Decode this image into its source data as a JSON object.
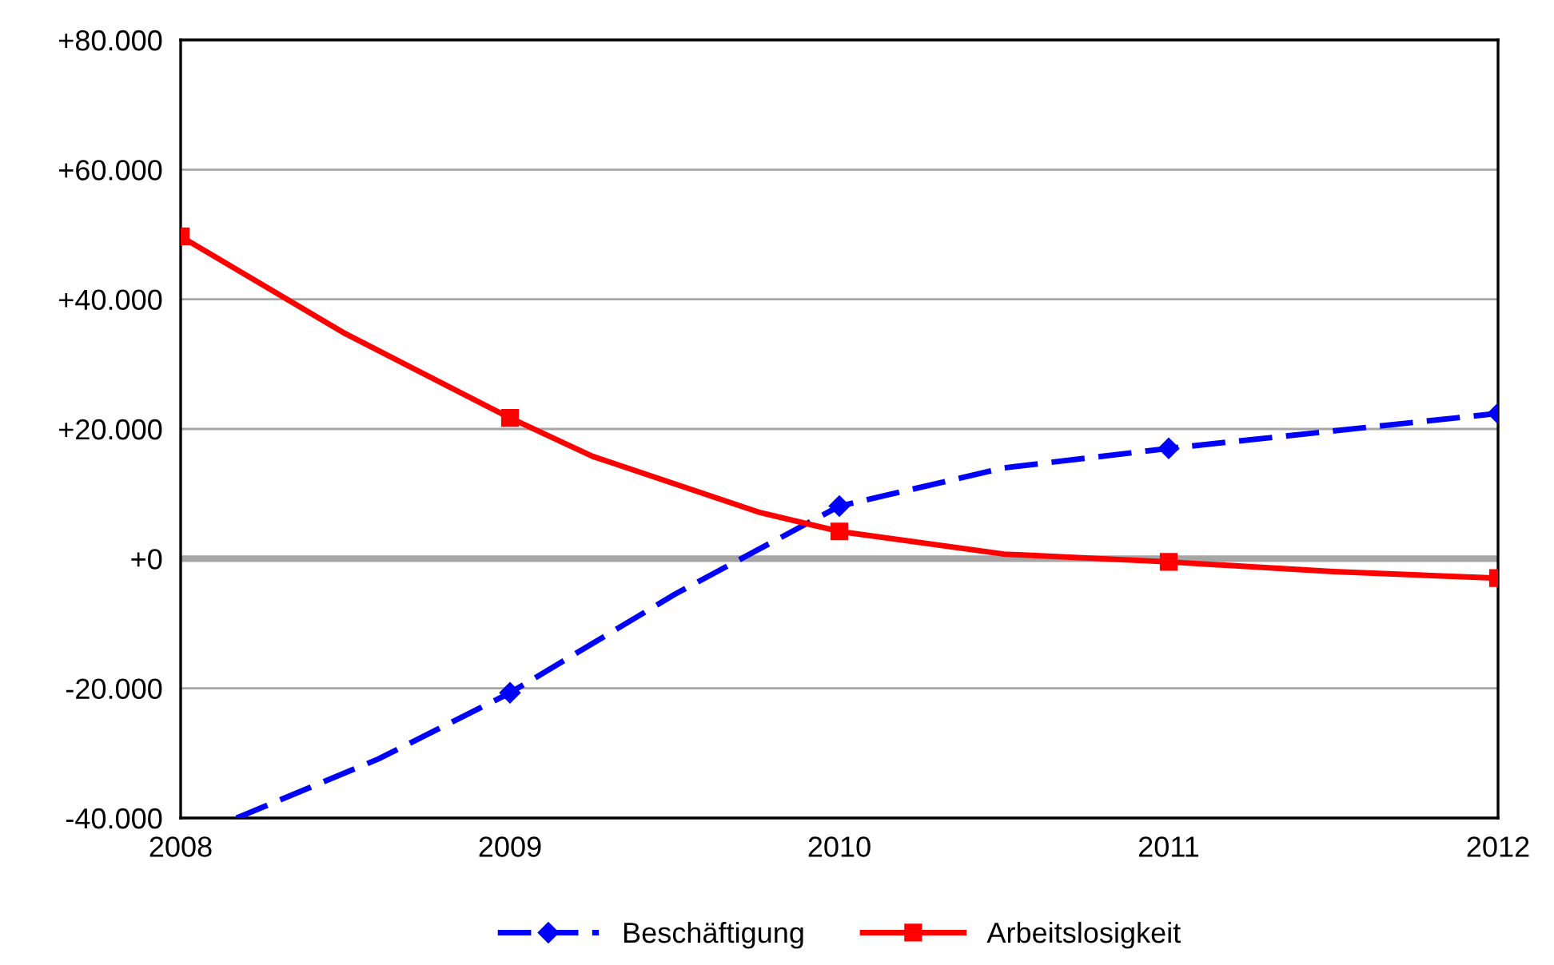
{
  "chart_data": {
    "type": "line",
    "xlim": [
      2008,
      2012
    ],
    "xticks": [
      2008,
      2009,
      2010,
      2011,
      2012
    ],
    "ylim": [
      -40000,
      80000
    ],
    "yticks": [
      {
        "value": -40000,
        "label": "-40.000"
      },
      {
        "value": -20000,
        "label": "-20.000"
      },
      {
        "value": 0,
        "label": "+0"
      },
      {
        "value": 20000,
        "label": "+20.000"
      },
      {
        "value": 40000,
        "label": "+40.000"
      },
      {
        "value": 60000,
        "label": "+60.000"
      },
      {
        "value": 80000,
        "label": "+80.000"
      }
    ],
    "grid": "y",
    "legend": "bottom",
    "ref_lines": [
      {
        "axis": "y",
        "value": 0,
        "color": "#a6a6a6"
      }
    ],
    "series": [
      {
        "name": "Beschäftigung",
        "color": "#0000ff",
        "line_style": "dashed",
        "marker": "diamond",
        "x": [
          2008.17,
          2008.6,
          2009,
          2009.5,
          2010,
          2010.5,
          2011,
          2012
        ],
        "values": [
          -40000,
          -30900,
          -20700,
          -5500,
          8100,
          14000,
          17000,
          22400
        ]
      },
      {
        "name": "Arbeitslosigkeit",
        "color": "#ff0000",
        "line_style": "solid",
        "marker": "square",
        "x": [
          2008,
          2008.5,
          2009,
          2009.25,
          2009.76,
          2010,
          2010.5,
          2011,
          2011.5,
          2012
        ],
        "values": [
          49700,
          34700,
          21700,
          15800,
          7100,
          4200,
          700,
          -500,
          -2000,
          -3000
        ]
      }
    ]
  }
}
